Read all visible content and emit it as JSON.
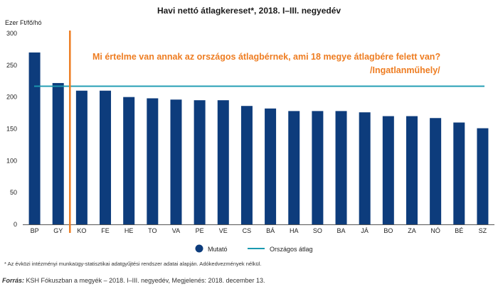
{
  "chart_data": {
    "type": "bar",
    "title": "Havi nettó átlagkereset*, 2018. I–III. negyedév",
    "ylabel": "Ezer Ft/fő/hó",
    "xlabel": "",
    "ylim": [
      0,
      300
    ],
    "yticks": [
      0,
      50,
      100,
      150,
      200,
      250,
      300
    ],
    "grid": false,
    "legend_position": "bottom",
    "categories": [
      "BP",
      "GY",
      "KO",
      "FE",
      "HE",
      "TO",
      "VA",
      "PE",
      "VE",
      "CS",
      "BÁ",
      "HA",
      "SO",
      "BA",
      "JÁ",
      "BO",
      "ZA",
      "NÓ",
      "BÉ",
      "SZ"
    ],
    "series": [
      {
        "name": "Mutató",
        "color": "#0d3c7c",
        "values": [
          270,
          222,
          210,
          210,
          200,
          198,
          196,
          195,
          195,
          186,
          182,
          178,
          178,
          178,
          176,
          170,
          170,
          167,
          160,
          151
        ]
      }
    ],
    "reference_lines": [
      {
        "name": "Országos átlag",
        "value": 217,
        "color": "#1a9ab0"
      }
    ],
    "highlight_marker": {
      "after_category": "GY",
      "color": "#ee7d22"
    }
  },
  "annotation": {
    "line1": "Mi értelme van annak az országos átlagbérnek, ami 18 megye átlagbére felett van?",
    "line2": "/Ingatlanműhely/",
    "color": "#ee7d22"
  },
  "footnote": "* Az évközi intézményi munkaügy-statisztikai adatgyűjtési rendszer adatai alapján. Adókedvezmények nélkül.",
  "source": {
    "label": "Forrás:",
    "text": " KSH Fókuszban a megyék – 2018. I–III. negyedév, Megjelenés: 2018. december 13."
  }
}
